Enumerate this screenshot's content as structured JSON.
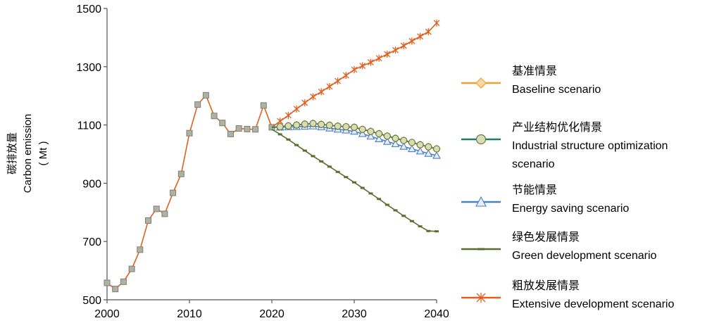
{
  "chart_data": {
    "type": "line",
    "title": "",
    "xlabel": "",
    "ylabel_cn": "碳排放量",
    "ylabel_en": "Carbon emission",
    "ylabel_unit": "( Mt )",
    "xlim": [
      2000,
      2040
    ],
    "ylim": [
      500,
      1500
    ],
    "xticks": [
      "2000",
      "2010",
      "2020",
      "2030",
      "2040"
    ],
    "yticks": [
      "500",
      "700",
      "900",
      "1100",
      "1300",
      "1500"
    ],
    "legend_position": "right",
    "history": {
      "x": [
        2000,
        2001,
        2002,
        2003,
        2004,
        2005,
        2006,
        2007,
        2008,
        2009,
        2010,
        2011,
        2012,
        2013,
        2014,
        2015,
        2016,
        2017,
        2018,
        2019,
        2020
      ],
      "values": [
        558,
        537,
        562,
        606,
        672,
        772,
        812,
        795,
        867,
        932,
        1072,
        1170,
        1202,
        1131,
        1107,
        1069,
        1088,
        1086,
        1085,
        1167,
        1092
      ]
    },
    "series": [
      {
        "key": "baseline",
        "name_cn": "基准情景",
        "name_en": "Baseline scenario",
        "color": "#f0a030",
        "marker": "diamond",
        "x": [
          2020,
          2021,
          2022,
          2023,
          2024,
          2025,
          2026,
          2027,
          2028,
          2029,
          2030,
          2031,
          2032,
          2033,
          2034,
          2035,
          2036,
          2037,
          2038,
          2039,
          2040
        ],
        "values": [
          1092,
          1094,
          1097,
          1100,
          1103,
          1105,
          1102,
          1099,
          1096,
          1094,
          1092,
          1085,
          1078,
          1070,
          1062,
          1054,
          1047,
          1040,
          1032,
          1025,
          1018
        ]
      },
      {
        "key": "industrial",
        "name_cn": "产业结构优化情景",
        "name_en": "Industrial structure optimization",
        "name_en_2": "scenario",
        "color": "#1e7d68",
        "marker": "circle",
        "x": [
          2020,
          2021,
          2022,
          2023,
          2024,
          2025,
          2026,
          2027,
          2028,
          2029,
          2030,
          2031,
          2032,
          2033,
          2034,
          2035,
          2036,
          2037,
          2038,
          2039,
          2040
        ],
        "values": [
          1092,
          1094,
          1097,
          1100,
          1103,
          1105,
          1102,
          1099,
          1096,
          1094,
          1092,
          1085,
          1078,
          1070,
          1062,
          1054,
          1047,
          1040,
          1032,
          1025,
          1018
        ]
      },
      {
        "key": "energy",
        "name_cn": "节能情景",
        "name_en": "Energy saving scenario",
        "color": "#4a80c4",
        "marker": "triangle",
        "x": [
          2020,
          2021,
          2022,
          2023,
          2024,
          2025,
          2026,
          2027,
          2028,
          2029,
          2030,
          2031,
          2032,
          2033,
          2034,
          2035,
          2036,
          2037,
          2038,
          2039,
          2040
        ],
        "values": [
          1092,
          1092,
          1093,
          1094,
          1095,
          1096,
          1093,
          1089,
          1085,
          1082,
          1078,
          1070,
          1061,
          1052,
          1043,
          1035,
          1026,
          1018,
          1010,
          1002,
          995
        ]
      },
      {
        "key": "green",
        "name_cn": "绿色发展情景",
        "name_en": "Green development scenario",
        "color": "#5a6e2e",
        "marker": "dash",
        "x": [
          2020,
          2021,
          2022,
          2023,
          2024,
          2025,
          2026,
          2027,
          2028,
          2029,
          2030,
          2031,
          2032,
          2033,
          2034,
          2035,
          2036,
          2037,
          2038,
          2039,
          2040
        ],
        "values": [
          1085,
          1068,
          1050,
          1031,
          1012,
          993,
          975,
          957,
          939,
          921,
          903,
          884,
          865,
          846,
          826,
          807,
          788,
          770,
          752,
          736,
          735
        ]
      },
      {
        "key": "extensive",
        "name_cn": "粗放发展情景",
        "name_en": "Extensive development scenario",
        "color": "#e06020",
        "marker": "star",
        "x": [
          2020,
          2021,
          2022,
          2023,
          2024,
          2025,
          2026,
          2027,
          2028,
          2029,
          2030,
          2031,
          2032,
          2033,
          2034,
          2035,
          2036,
          2037,
          2038,
          2039,
          2040
        ],
        "values": [
          1092,
          1113,
          1133,
          1155,
          1176,
          1197,
          1214,
          1232,
          1251,
          1270,
          1290,
          1303,
          1315,
          1329,
          1343,
          1357,
          1372,
          1388,
          1404,
          1420,
          1450
        ]
      }
    ]
  }
}
